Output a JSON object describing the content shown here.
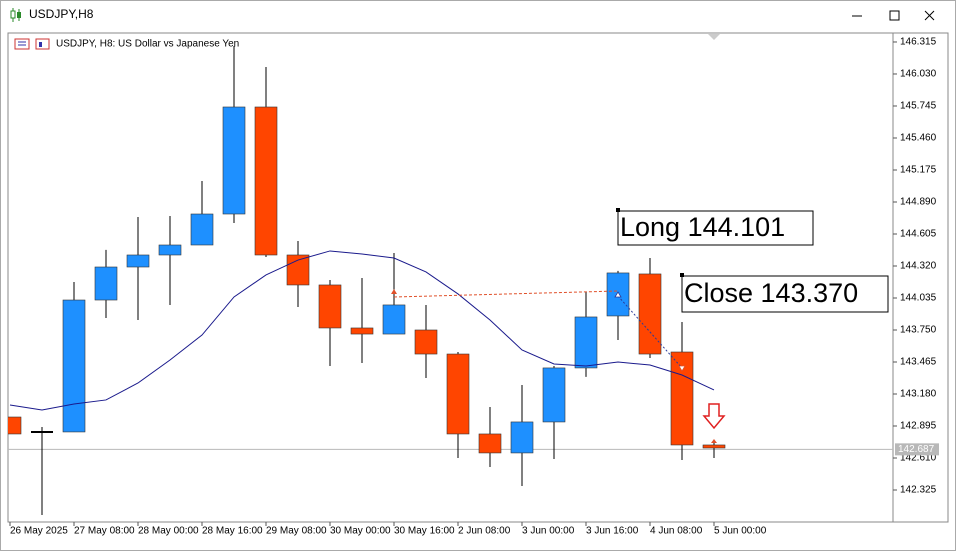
{
  "window": {
    "title": "USDJPY,H8"
  },
  "chart_data": {
    "type": "candlestick",
    "title": "USDJPY, H8:  US Dollar vs Japanese Yen",
    "categories": [
      "26 May 2025",
      null,
      "27 May 08:00",
      null,
      "28 May 00:00",
      null,
      "28 May 16:00",
      null,
      "29 May 08:00",
      null,
      "30 May 00:00",
      null,
      "30 May 16:00",
      null,
      "2 Jun 08:00",
      null,
      "3 Jun 00:00",
      null,
      "3 Jun 16:00",
      null,
      "4 Jun 08:00",
      null,
      "5 Jun 00:00"
    ],
    "open": [
      142.975,
      142.842,
      142.842,
      144.017,
      144.311,
      144.418,
      144.507,
      144.783,
      145.736,
      144.418,
      144.151,
      143.768,
      143.714,
      143.75,
      143.536,
      142.824,
      142.655,
      142.931,
      143.412,
      143.875,
      144.249,
      143.554,
      142.726
    ],
    "high": [
      142.975,
      142.886,
      144.177,
      144.463,
      144.756,
      144.765,
      145.077,
      146.279,
      146.092,
      144.543,
      144.195,
      144.213,
      144.436,
      143.973,
      143.554,
      143.064,
      143.26,
      143.429,
      144.088,
      144.276,
      144.391,
      143.821,
      142.771
    ],
    "low": [
      142.824,
      142.102,
      142.842,
      143.857,
      143.839,
      143.973,
      144.507,
      144.703,
      144.4,
      143.955,
      143.429,
      143.456,
      143.714,
      143.323,
      142.61,
      142.53,
      142.361,
      142.601,
      143.332,
      143.661,
      143.501,
      142.592,
      142.61
    ],
    "close": [
      142.824,
      142.842,
      144.017,
      144.311,
      144.418,
      144.507,
      144.783,
      145.736,
      144.418,
      144.151,
      143.768,
      143.714,
      143.973,
      143.536,
      142.824,
      142.655,
      142.931,
      143.412,
      143.866,
      144.258,
      143.536,
      142.726,
      142.699
    ],
    "up_color": "#1e90ff",
    "down_color": "#ff4500",
    "doji_color": "#000000",
    "ma": {
      "color": "#1a1a8c",
      "values": [
        143.082,
        143.037,
        143.091,
        143.127,
        143.278,
        143.483,
        143.705,
        144.044,
        144.24,
        144.373,
        144.454,
        144.427,
        144.391,
        144.267,
        144.071,
        143.839,
        143.572,
        143.447,
        143.429,
        143.465,
        143.438,
        143.349,
        143.216
      ]
    },
    "ylim": [
      142.04,
      146.395
    ],
    "yticks": [
      146.315,
      {
        "value": 146.03,
        "label": "146.030"
      },
      145.745,
      {
        "value": 145.46,
        "label": "145.460"
      },
      145.175,
      {
        "value": 144.89,
        "label": "144.890"
      },
      144.605,
      {
        "value": 144.32,
        "label": "144.320"
      },
      144.035,
      {
        "value": 143.75,
        "label": "143.750"
      },
      143.465,
      {
        "value": 143.18,
        "label": "143.180"
      },
      142.895,
      {
        "value": 142.61,
        "label": "142.610"
      },
      142.325
    ],
    "current_price": 142.687,
    "annotations": [
      "Long 144.101",
      "Close 143.370"
    ]
  }
}
